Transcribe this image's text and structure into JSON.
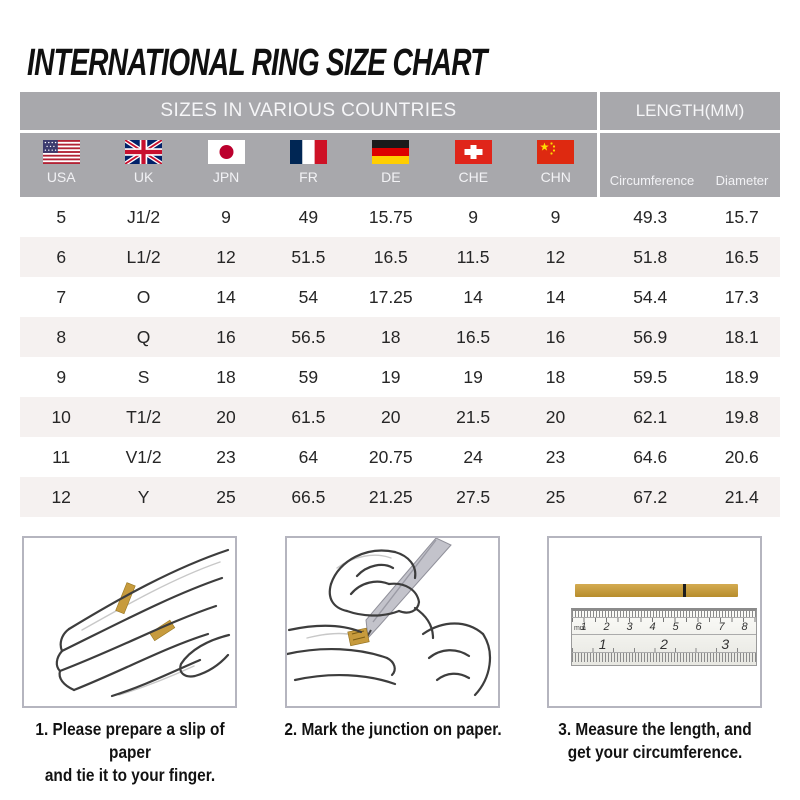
{
  "title": "INTERNATIONAL RING SIZE CHART",
  "chart_data": {
    "type": "table",
    "title": "INTERNATIONAL RING SIZE CHART",
    "column_groups": [
      "SIZES IN VARIOUS COUNTRIES",
      "LENGTH(MM)"
    ],
    "columns": [
      "USA",
      "UK",
      "JPN",
      "FR",
      "DE",
      "CHE",
      "CHN",
      "Circumference",
      "Diameter"
    ],
    "rows": [
      [
        "5",
        "J1/2",
        "9",
        "49",
        "15.75",
        "9",
        "9",
        "49.3",
        "15.7"
      ],
      [
        "6",
        "L1/2",
        "12",
        "51.5",
        "16.5",
        "11.5",
        "12",
        "51.8",
        "16.5"
      ],
      [
        "7",
        "O",
        "14",
        "54",
        "17.25",
        "14",
        "14",
        "54.4",
        "17.3"
      ],
      [
        "8",
        "Q",
        "16",
        "56.5",
        "18",
        "16.5",
        "16",
        "56.9",
        "18.1"
      ],
      [
        "9",
        "S",
        "18",
        "59",
        "19",
        "19",
        "18",
        "59.5",
        "18.9"
      ],
      [
        "10",
        "T1/2",
        "20",
        "61.5",
        "20",
        "21.5",
        "20",
        "62.1",
        "19.8"
      ],
      [
        "11",
        "V1/2",
        "23",
        "64",
        "20.75",
        "24",
        "23",
        "64.6",
        "20.6"
      ],
      [
        "12",
        "Y",
        "25",
        "66.5",
        "21.25",
        "27.5",
        "25",
        "67.2",
        "21.4"
      ]
    ]
  },
  "flags": [
    {
      "country": "USA",
      "icon": "usa-flag-icon"
    },
    {
      "country": "UK",
      "icon": "uk-flag-icon"
    },
    {
      "country": "JPN",
      "icon": "japan-flag-icon"
    },
    {
      "country": "FR",
      "icon": "france-flag-icon"
    },
    {
      "country": "DE",
      "icon": "germany-flag-icon"
    },
    {
      "country": "CHE",
      "icon": "switzerland-flag-icon"
    },
    {
      "country": "CHN",
      "icon": "china-flag-icon"
    }
  ],
  "instructions": [
    {
      "line1": "1. Please prepare a slip of paper",
      "line2": "and tie it to your finger."
    },
    {
      "line1": "2. Mark the junction on paper.",
      "line2": ""
    },
    {
      "line1": "3. Measure the length, and",
      "line2": "get your circumference."
    }
  ],
  "ruler": {
    "unit_label": "mm",
    "cm_numbers": [
      "1",
      "2",
      "3",
      "4",
      "5",
      "6",
      "7",
      "8"
    ],
    "inch_numbers": [
      "1",
      "2",
      "3"
    ]
  },
  "colors": {
    "header_gray": "#a8a8ac",
    "row_alt": "#f5f1f0",
    "paper_gold": "#c79b3d",
    "text": "#1c1c1c"
  }
}
